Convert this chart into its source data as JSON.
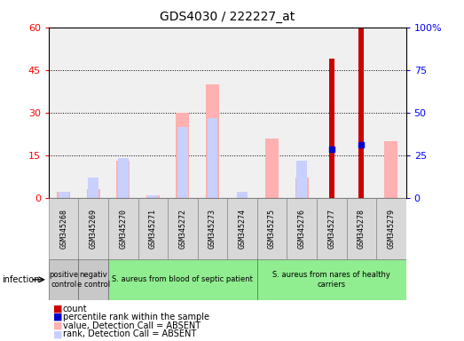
{
  "title": "GDS4030 / 222227_at",
  "samples": [
    "GSM345268",
    "GSM345269",
    "GSM345270",
    "GSM345271",
    "GSM345272",
    "GSM345273",
    "GSM345274",
    "GSM345275",
    "GSM345276",
    "GSM345277",
    "GSM345278",
    "GSM345279"
  ],
  "count_values": [
    0,
    0,
    0,
    0,
    0,
    0,
    0,
    0,
    0,
    49,
    60,
    0
  ],
  "percentile_values": [
    null,
    null,
    null,
    null,
    null,
    null,
    null,
    null,
    null,
    28.5,
    31.0,
    null
  ],
  "absent_value_values": [
    2,
    3,
    13,
    1,
    30,
    40,
    0,
    21,
    7,
    0,
    0,
    20
  ],
  "absent_rank_values": [
    2,
    7,
    14,
    1,
    25,
    28,
    2,
    0,
    13,
    0,
    0,
    0
  ],
  "left_ylim": [
    0,
    60
  ],
  "right_ylim": [
    0,
    100
  ],
  "left_yticks": [
    0,
    15,
    30,
    45,
    60
  ],
  "right_yticks": [
    0,
    25,
    50,
    75,
    100
  ],
  "right_yticklabels": [
    "0",
    "25",
    "50",
    "75",
    "100%"
  ],
  "color_count": "#cc0000",
  "color_percentile": "#0000cc",
  "color_absent_value": "#ffb0b0",
  "color_absent_rank": "#c8d0ff",
  "group_starts": [
    0,
    1,
    2,
    7
  ],
  "group_ends": [
    1,
    2,
    7,
    12
  ],
  "group_colors": [
    "#c8c8c8",
    "#c8c8c8",
    "#90ee90",
    "#90ee90"
  ],
  "group_labels": [
    "positive\ncontrol",
    "negativ\ne control",
    "S. aureus from blood of septic patient",
    "S. aureus from nares of healthy\ncarriers"
  ],
  "legend_items": [
    {
      "label": "count",
      "color": "#cc0000"
    },
    {
      "label": "percentile rank within the sample",
      "color": "#0000cc"
    },
    {
      "label": "value, Detection Call = ABSENT",
      "color": "#ffb0b0"
    },
    {
      "label": "rank, Detection Call = ABSENT",
      "color": "#c8d0ff"
    }
  ],
  "plot_bg": "#f0f0f0",
  "fig_bg": "#ffffff"
}
